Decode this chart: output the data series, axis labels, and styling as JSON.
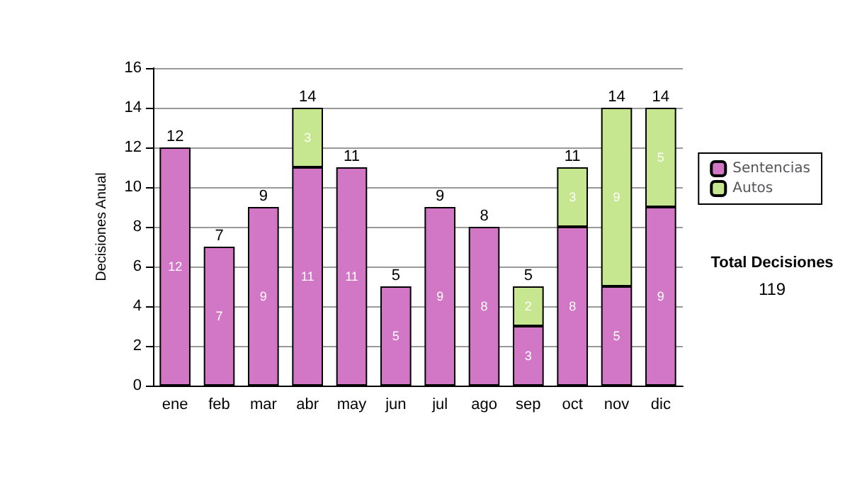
{
  "chart_data": {
    "type": "bar",
    "stacked": true,
    "ylabel": "Decisiones Anual",
    "categories": [
      "ene",
      "feb",
      "mar",
      "abr",
      "may",
      "jun",
      "jul",
      "ago",
      "sep",
      "oct",
      "nov",
      "dic"
    ],
    "series": [
      {
        "name": "Sentencias",
        "color": "#d277c6",
        "values": [
          12,
          7,
          9,
          11,
          11,
          5,
          9,
          8,
          3,
          8,
          5,
          9
        ],
        "value_labels": [
          "12",
          "7",
          "9",
          "11",
          "11",
          "5",
          "9",
          "8",
          "3",
          "8",
          "5",
          "9"
        ]
      },
      {
        "name": "Autos",
        "color": "#c6e68f",
        "values": [
          0,
          0,
          0,
          3,
          0,
          0,
          0,
          0,
          2,
          3,
          9,
          5
        ],
        "value_labels": [
          null,
          null,
          null,
          "3",
          null,
          null,
          null,
          null,
          "2",
          "3",
          "9",
          "5"
        ]
      }
    ],
    "totals": [
      "12",
      "7",
      "9",
      "14",
      "11",
      "5",
      "9",
      "8",
      "5",
      "11",
      "14",
      "14"
    ],
    "ylim": [
      0,
      16
    ],
    "yticks": [
      0,
      2,
      4,
      6,
      8,
      10,
      12,
      14,
      16
    ],
    "grid": "y",
    "legend": "right",
    "annotations": [
      "Total Decisiones",
      "119"
    ]
  }
}
